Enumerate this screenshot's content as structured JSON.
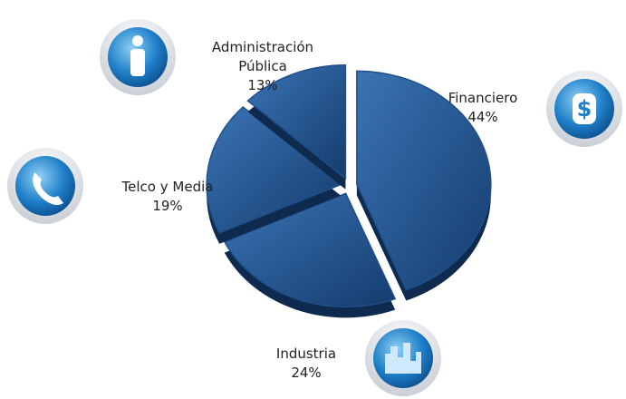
{
  "chart_data": {
    "type": "pie",
    "categories": [
      "Financiero",
      "Industria",
      "Telco y Media",
      "Administración Pública"
    ],
    "values": [
      44,
      24,
      19,
      13
    ],
    "value_labels": [
      "44%",
      "24%",
      "19%",
      "13%"
    ],
    "color": "#1f4f8a"
  }
}
